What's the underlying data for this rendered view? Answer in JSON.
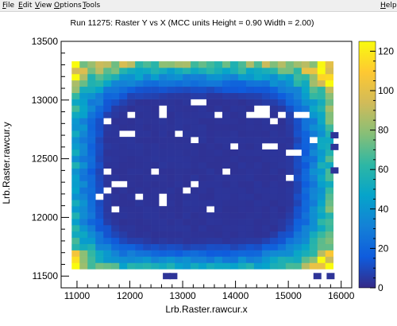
{
  "menubar": {
    "items": [
      {
        "label": "File",
        "ul": "F",
        "rest": "ile"
      },
      {
        "label": "Edit",
        "ul": "E",
        "rest": "dit"
      },
      {
        "label": "View",
        "ul": "V",
        "rest": "iew"
      },
      {
        "label": "Options",
        "ul": "O",
        "rest": "ptions"
      },
      {
        "label": "Tools",
        "ul": "T",
        "rest": "ools"
      }
    ],
    "help": {
      "label": "Help",
      "ul": "H",
      "rest": "elp"
    }
  },
  "chart_data": {
    "type": "heatmap",
    "title": "Run 11275: Raster Y vs X (MCC units Height = 0.90 Width = 2.00)",
    "xlabel": "Lrb.Raster.rawcur.x",
    "ylabel": "Lrb.Raster.rawcur.y",
    "xlim": [
      10700,
      16200
    ],
    "ylim": [
      11400,
      13500
    ],
    "x_ticks": [
      11000,
      12000,
      13000,
      14000,
      15000,
      16000
    ],
    "x_tick_labels": [
      "11000",
      "12000",
      "13000",
      "14000",
      "15000",
      "16000"
    ],
    "y_ticks": [
      11500,
      12000,
      12500,
      13000,
      13500
    ],
    "y_tick_labels": [
      "11500",
      "12000",
      "12500",
      "13000",
      "13500"
    ],
    "colorbar": {
      "zlim": [
        0,
        125
      ],
      "ticks": [
        0,
        20,
        40,
        60,
        80,
        100,
        120
      ],
      "tick_labels": [
        "0",
        "20",
        "40",
        "60",
        "80",
        "100",
        "120"
      ],
      "palette": [
        "#352a87",
        "#0f5cdd",
        "#1481d6",
        "#06a4ca",
        "#2eb7a4",
        "#87bf77",
        "#d1bb59",
        "#fec832",
        "#f9fb0e"
      ]
    },
    "grid": false,
    "bins": {
      "x_start": 10900,
      "x_end": 15850,
      "nx": 33,
      "y_start": 11560,
      "y_end": 13330,
      "ny": 33,
      "x_center": 13300,
      "y_center": 12410,
      "x_half_width": 2700,
      "y_half_width": 950,
      "floor_value": 3,
      "peak_value": 125,
      "edge_power": 4,
      "seed": 11275
    },
    "extra_cells": [
      {
        "x": 12700,
        "y": 11500,
        "value": 3
      },
      {
        "x": 12825,
        "y": 11500,
        "value": 3
      },
      {
        "x": 15550,
        "y": 11500,
        "value": 3
      },
      {
        "x": 15800,
        "y": 11500,
        "value": 3
      },
      {
        "x": 15875,
        "y": 12600,
        "value": 3
      },
      {
        "x": 15875,
        "y": 12700,
        "value": 3
      },
      {
        "x": 15875,
        "y": 12400,
        "value": 3
      }
    ],
    "empty_cells": [
      {
        "x": 13300,
        "y": 13000
      },
      {
        "x": 12575,
        "y": 12900
      },
      {
        "x": 14500,
        "y": 12900
      },
      {
        "x": 11550,
        "y": 12800
      },
      {
        "x": 12050,
        "y": 12850
      },
      {
        "x": 13675,
        "y": 12850
      },
      {
        "x": 14300,
        "y": 12850
      },
      {
        "x": 14900,
        "y": 12850
      },
      {
        "x": 15150,
        "y": 12850
      },
      {
        "x": 15275,
        "y": 12850
      },
      {
        "x": 14775,
        "y": 12800
      },
      {
        "x": 11900,
        "y": 12700
      },
      {
        "x": 12050,
        "y": 12700
      },
      {
        "x": 12925,
        "y": 12700
      },
      {
        "x": 13200,
        "y": 12650
      },
      {
        "x": 15475,
        "y": 12650
      },
      {
        "x": 14025,
        "y": 12600
      },
      {
        "x": 14650,
        "y": 12600
      },
      {
        "x": 15025,
        "y": 12550
      },
      {
        "x": 15150,
        "y": 12550
      },
      {
        "x": 11550,
        "y": 12400
      },
      {
        "x": 12425,
        "y": 12400
      },
      {
        "x": 13800,
        "y": 12400
      },
      {
        "x": 15025,
        "y": 12350
      },
      {
        "x": 11800,
        "y": 12300
      },
      {
        "x": 13175,
        "y": 12300
      },
      {
        "x": 11550,
        "y": 12250
      },
      {
        "x": 13050,
        "y": 12250
      },
      {
        "x": 12175,
        "y": 12200
      },
      {
        "x": 11425,
        "y": 12200
      },
      {
        "x": 12600,
        "y": 12150
      },
      {
        "x": 11675,
        "y": 12050
      },
      {
        "x": 13550,
        "y": 12050
      }
    ]
  }
}
